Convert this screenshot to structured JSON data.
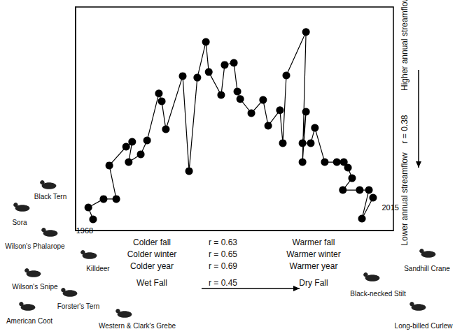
{
  "chart_data": {
    "type": "line",
    "x": [
      5.5,
      4.0,
      8.8,
      12.8,
      10.6,
      15.9,
      17.8,
      16.7,
      20.5,
      22.5,
      26.2,
      27.1,
      28.4,
      33.7,
      35.7,
      38.3,
      41.0,
      41.9,
      45.8,
      46.9,
      49.8,
      50.9,
      51.8,
      55.3,
      59.0,
      60.6,
      64.3,
      65.2,
      66.3,
      72.5,
      71.4,
      72.5,
      71.4,
      74.0,
      75.3,
      78.4,
      82.2,
      84.4,
      85.7,
      87.0,
      84.1,
      89.4,
      92.3,
      90.1,
      93.6
    ],
    "values": [
      5.0,
      10.3,
      14.1,
      14.1,
      29.1,
      37.5,
      39.7,
      30.6,
      34.1,
      40.3,
      61.3,
      57.8,
      45.3,
      69.1,
      26.6,
      68.4,
      84.4,
      70.9,
      60.6,
      74.1,
      75.0,
      62.2,
      58.8,
      52.5,
      58.4,
      46.9,
      53.8,
      39.1,
      69.4,
      88.8,
      30.6,
      53.1,
      39.1,
      39.1,
      45.9,
      30.6,
      30.6,
      30.6,
      28.1,
      23.4,
      18.1,
      18.1,
      18.1,
      5.3,
      14.7
    ],
    "xlim": [
      0,
      100
    ],
    "ylim": [
      0,
      100
    ],
    "tick_labels": false,
    "grid": false,
    "color": "#000000",
    "marker": "circle",
    "line_style": "solid",
    "annotations": {
      "first_point": "1968",
      "last_point": "2015"
    },
    "x_gradients": [
      {
        "low": "Colder fall",
        "r": "r = 0.63",
        "high": "Warmer fall"
      },
      {
        "low": "Colder winter",
        "r": "r = 0.65",
        "high": "Warmer winter"
      },
      {
        "low": "Colder year",
        "r": "r = 0.69",
        "high": "Warmer year"
      },
      {
        "low": "Wet Fall",
        "r": "r = 0.45",
        "high": "Dry Fall"
      }
    ],
    "y_gradient": {
      "low": "Lower annual streamflow",
      "r": "r = 0.38",
      "high": "Higher annual streamflow"
    },
    "left_birds": [
      "Black Tern",
      "Sora",
      "Wilson's Phalarope",
      "Killdeer",
      "Wilson's Snipe",
      "Forster's Tern",
      "American Coot",
      "Western & Clark's Grebe"
    ],
    "right_birds": [
      "Black-necked Stilt",
      "Sandhill Crane",
      "Long-billed Curlew"
    ]
  }
}
